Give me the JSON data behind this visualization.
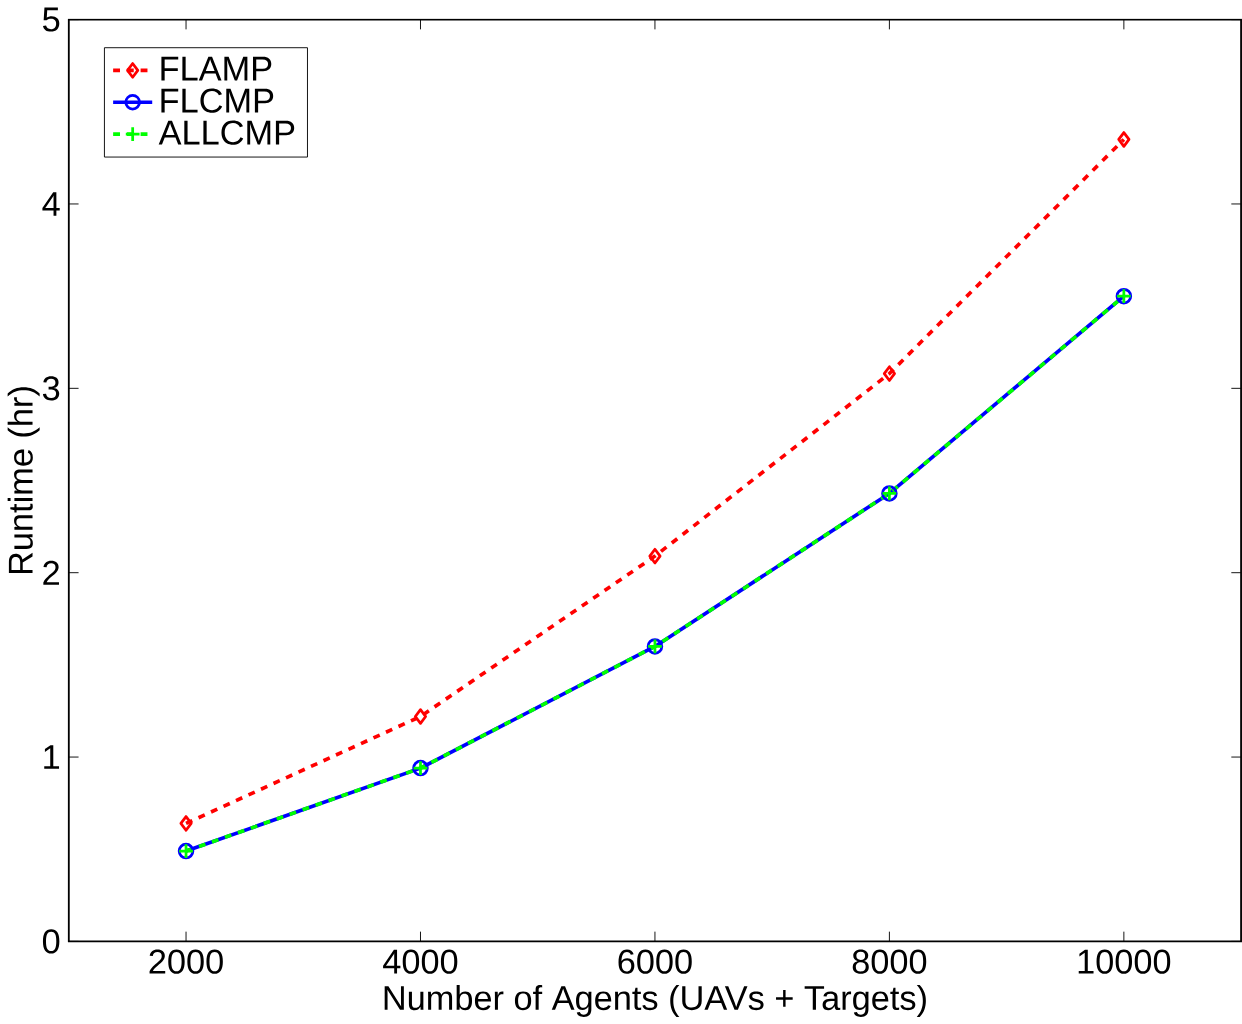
{
  "chart_data": {
    "type": "line",
    "xlabel": "Number of Agents (UAVs + Targets)",
    "ylabel": "Runtime (hr)",
    "x": [
      2000,
      4000,
      6000,
      8000,
      10000
    ],
    "series": [
      {
        "name": "FLAMP",
        "color": "#ff0000",
        "values": [
          0.64,
          1.22,
          2.09,
          3.08,
          4.35
        ],
        "marker": "diamond",
        "line_style": "dashed"
      },
      {
        "name": "FLCMP",
        "color": "#0000ff",
        "values": [
          0.49,
          0.94,
          1.6,
          2.43,
          3.5
        ],
        "marker": "circle",
        "line_style": "solid"
      },
      {
        "name": "ALLCMP",
        "color": "#00ff00",
        "values": [
          0.49,
          0.94,
          1.6,
          2.43,
          3.5
        ],
        "marker": "cross",
        "line_style": "dashed"
      }
    ],
    "xlim": [
      1000,
      11000
    ],
    "ylim": [
      0,
      5
    ],
    "xticks": [
      2000,
      4000,
      6000,
      8000,
      10000
    ],
    "yticks": [
      0,
      1,
      2,
      3,
      4,
      5
    ],
    "grid": false,
    "legend": "top left"
  }
}
